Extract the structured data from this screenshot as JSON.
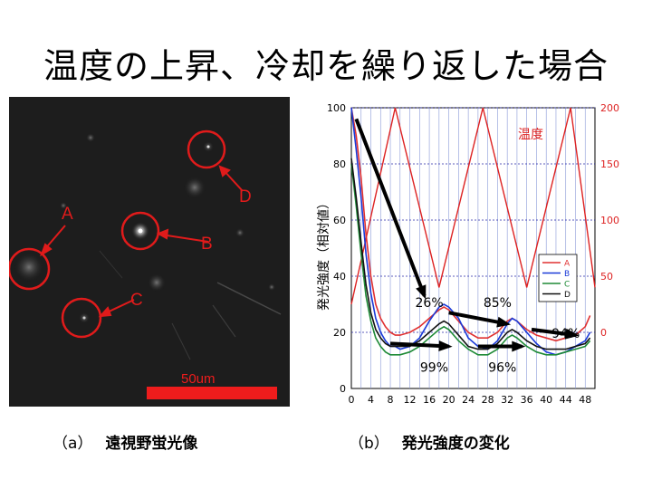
{
  "title": "温度の上昇、冷却を繰り返した場合",
  "micrograph": {
    "labels": [
      "A",
      "B",
      "C",
      "D"
    ],
    "scale_bar": "50um"
  },
  "captions": {
    "a_mark": "（a）",
    "a_text": "遠視野蛍光像",
    "b_mark": "（b）",
    "b_text": "発光強度の変化"
  },
  "chart_data": {
    "type": "line",
    "ylabel": "発光強度（相対値）",
    "y2label": "温度",
    "xlim": [
      0,
      50
    ],
    "ylim": [
      0,
      100
    ],
    "y2lim": [
      -50,
      200
    ],
    "xticks": [
      0,
      4,
      8,
      12,
      16,
      20,
      24,
      28,
      32,
      36,
      40,
      44,
      48
    ],
    "yticks": [
      0,
      20,
      40,
      60,
      80,
      100
    ],
    "y2ticks": [
      0,
      50,
      100,
      150,
      200
    ],
    "grid": true,
    "legend_position": "right",
    "temperature": {
      "name": "温度",
      "axis": "right",
      "color": "#dd2222",
      "x": [
        0,
        9,
        18,
        27,
        36,
        45,
        50
      ],
      "y": [
        25,
        200,
        40,
        200,
        40,
        200,
        40
      ]
    },
    "series": [
      {
        "name": "A",
        "color": "#e03030",
        "x": [
          0,
          1,
          2,
          3,
          4,
          5,
          6,
          7,
          8,
          9,
          10,
          12,
          14,
          16,
          18,
          19,
          20,
          22,
          24,
          26,
          28,
          30,
          32,
          33,
          34,
          36,
          38,
          40,
          42,
          44,
          46,
          48,
          49
        ],
        "y": [
          100,
          90,
          75,
          55,
          40,
          30,
          25,
          22,
          20,
          19,
          19,
          20,
          22,
          25,
          28,
          29,
          28,
          24,
          20,
          18,
          18,
          20,
          24,
          25,
          24,
          21,
          19,
          18,
          17,
          18,
          19,
          22,
          26
        ]
      },
      {
        "name": "B",
        "color": "#1a3ad8",
        "x": [
          0,
          1,
          2,
          3,
          4,
          5,
          6,
          7,
          8,
          9,
          10,
          12,
          14,
          16,
          18,
          19,
          20,
          22,
          24,
          26,
          28,
          30,
          32,
          33,
          34,
          36,
          38,
          40,
          42,
          44,
          46,
          48,
          49
        ],
        "y": [
          100,
          85,
          68,
          48,
          34,
          25,
          20,
          17,
          15,
          15,
          14,
          15,
          18,
          24,
          29,
          30,
          29,
          25,
          18,
          15,
          14,
          17,
          23,
          25,
          24,
          20,
          16,
          13,
          12,
          13,
          15,
          17,
          20
        ]
      },
      {
        "name": "C",
        "color": "#1e8a36",
        "x": [
          0,
          1,
          2,
          3,
          4,
          5,
          6,
          7,
          8,
          9,
          10,
          12,
          14,
          16,
          18,
          19,
          20,
          22,
          24,
          26,
          28,
          30,
          32,
          33,
          34,
          36,
          38,
          40,
          42,
          44,
          46,
          48,
          49
        ],
        "y": [
          80,
          65,
          48,
          33,
          24,
          18,
          15,
          13,
          12,
          12,
          12,
          13,
          15,
          18,
          21,
          22,
          21,
          17,
          14,
          12,
          12,
          14,
          18,
          19,
          18,
          15,
          13,
          12,
          12,
          13,
          14,
          15,
          17
        ]
      },
      {
        "name": "D",
        "color": "#111111",
        "x": [
          0,
          1,
          2,
          3,
          4,
          5,
          6,
          7,
          8,
          9,
          10,
          12,
          14,
          16,
          18,
          19,
          20,
          22,
          24,
          26,
          28,
          30,
          32,
          33,
          34,
          36,
          38,
          40,
          42,
          44,
          46,
          48,
          49
        ],
        "y": [
          82,
          68,
          52,
          37,
          27,
          21,
          18,
          16,
          15,
          15,
          15,
          15,
          17,
          20,
          23,
          24,
          23,
          19,
          15,
          14,
          14,
          16,
          20,
          21,
          20,
          17,
          15,
          14,
          14,
          14,
          15,
          16,
          18
        ]
      }
    ],
    "annotations": [
      {
        "text": "26%",
        "x": 16,
        "y": 29,
        "arrow_from": [
          1,
          96
        ],
        "arrow_to": [
          15,
          33
        ]
      },
      {
        "text": "85%",
        "x": 30,
        "y": 29,
        "arrow_from": [
          20,
          27
        ],
        "arrow_to": [
          32,
          23
        ]
      },
      {
        "text": "94%",
        "x": 44,
        "y": 18,
        "arrow_from": [
          37,
          21
        ],
        "arrow_to": [
          46,
          19
        ]
      },
      {
        "text": "99%",
        "x": 17,
        "y": 6,
        "arrow_from": [
          8,
          16
        ],
        "arrow_to": [
          20,
          15
        ]
      },
      {
        "text": "96%",
        "x": 31,
        "y": 6,
        "arrow_from": [
          26,
          15
        ],
        "arrow_to": [
          35,
          15
        ]
      }
    ]
  }
}
